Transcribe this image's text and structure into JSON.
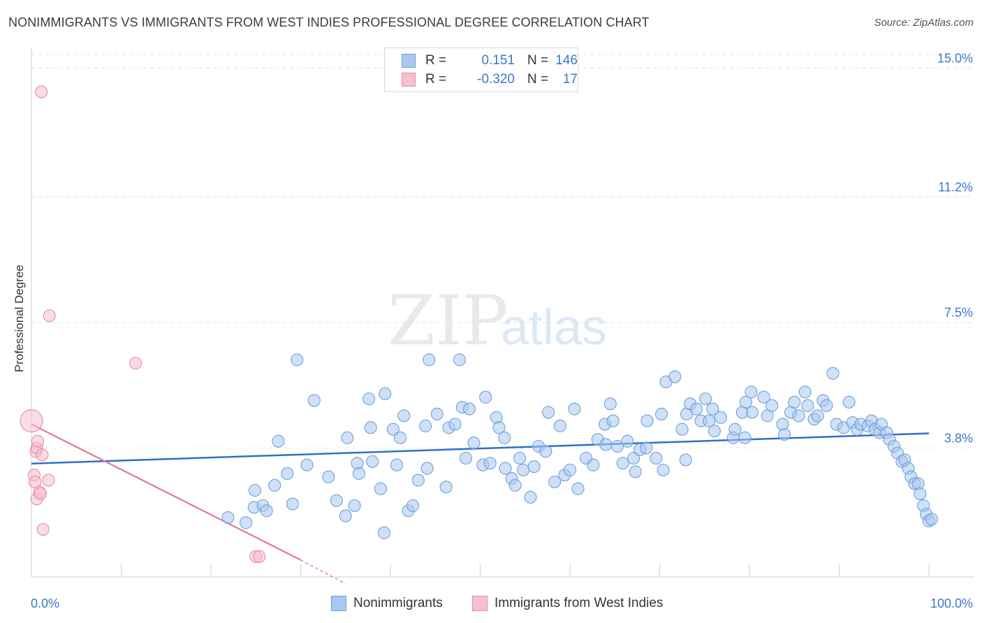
{
  "title": "NONIMMIGRANTS VS IMMIGRANTS FROM WEST INDIES PROFESSIONAL DEGREE CORRELATION CHART",
  "source": "Source: ZipAtlas.com",
  "watermark": {
    "zip": "ZIP",
    "atlas": "atlas"
  },
  "legend": {
    "rows": [
      {
        "r_label": "R =",
        "r_value": "0.151",
        "n_label": "N =",
        "n_value": "146",
        "color": "#a8c8f0",
        "border": "#6f9fd8"
      },
      {
        "r_label": "R =",
        "r_value": "-0.320",
        "n_label": "N =",
        "n_value": "17",
        "color": "#f7c0cf",
        "border": "#e58aa5"
      }
    ]
  },
  "bottom_legend": [
    {
      "label": "Nonimmigrants",
      "color": "#a8c8f0",
      "border": "#6f9fd8"
    },
    {
      "label": "Immigrants from West Indies",
      "color": "#f7c0cf",
      "border": "#e58aa5"
    }
  ],
  "chart_data": {
    "type": "scatter",
    "title": "NONIMMIGRANTS VS IMMIGRANTS FROM WEST INDIES PROFESSIONAL DEGREE CORRELATION CHART",
    "xlabel": "",
    "ylabel": "Professional Degree",
    "xlim": [
      0,
      100
    ],
    "ylim": [
      0,
      15.4
    ],
    "x_tick_labels": [
      "0.0%",
      "100.0%"
    ],
    "y_ticks": [
      3.8,
      7.5,
      11.2,
      15.0
    ],
    "y_tick_labels": [
      "3.8%",
      "7.5%",
      "11.2%",
      "15.0%"
    ],
    "grid": true,
    "legend_position": "top-center",
    "series": [
      {
        "name": "Nonimmigrants",
        "color": "#a8c8f0",
        "edge": "#6f9fd8",
        "trend": {
          "x": [
            0,
            100
          ],
          "y": [
            3.34,
            4.23
          ],
          "color": "#2f6fcc"
        },
        "points": [
          [
            21.9,
            1.75
          ],
          [
            23.9,
            1.6
          ],
          [
            24.8,
            2.05
          ],
          [
            24.9,
            2.55
          ],
          [
            25.8,
            2.1
          ],
          [
            26.2,
            1.95
          ],
          [
            27.1,
            2.7
          ],
          [
            27.5,
            4.0
          ],
          [
            28.5,
            3.05
          ],
          [
            29.1,
            2.15
          ],
          [
            29.6,
            6.4
          ],
          [
            30.7,
            3.3
          ],
          [
            31.5,
            5.2
          ],
          [
            33.1,
            2.95
          ],
          [
            34.0,
            2.25
          ],
          [
            35.0,
            1.8
          ],
          [
            35.2,
            4.1
          ],
          [
            36.0,
            2.1
          ],
          [
            36.3,
            3.35
          ],
          [
            36.5,
            3.05
          ],
          [
            37.6,
            5.25
          ],
          [
            37.8,
            4.4
          ],
          [
            38.0,
            3.4
          ],
          [
            38.9,
            2.6
          ],
          [
            39.3,
            1.3
          ],
          [
            39.4,
            5.4
          ],
          [
            40.3,
            4.35
          ],
          [
            40.7,
            3.3
          ],
          [
            41.1,
            4.1
          ],
          [
            41.5,
            4.75
          ],
          [
            42.0,
            1.95
          ],
          [
            42.5,
            2.1
          ],
          [
            43.1,
            2.85
          ],
          [
            43.9,
            4.45
          ],
          [
            44.1,
            3.2
          ],
          [
            44.3,
            6.4
          ],
          [
            45.2,
            4.8
          ],
          [
            46.2,
            2.65
          ],
          [
            46.5,
            4.4
          ],
          [
            47.2,
            4.5
          ],
          [
            47.7,
            6.4
          ],
          [
            48.0,
            5.0
          ],
          [
            48.4,
            3.5
          ],
          [
            48.8,
            4.95
          ],
          [
            49.3,
            3.95
          ],
          [
            50.3,
            3.3
          ],
          [
            50.6,
            5.3
          ],
          [
            51.1,
            3.35
          ],
          [
            51.8,
            4.7
          ],
          [
            52.1,
            4.4
          ],
          [
            52.7,
            4.1
          ],
          [
            52.8,
            3.2
          ],
          [
            53.5,
            2.9
          ],
          [
            53.9,
            2.7
          ],
          [
            54.4,
            3.5
          ],
          [
            54.8,
            3.15
          ],
          [
            55.6,
            2.35
          ],
          [
            56.0,
            3.25
          ],
          [
            56.5,
            3.85
          ],
          [
            57.3,
            3.7
          ],
          [
            57.6,
            4.85
          ],
          [
            58.3,
            2.8
          ],
          [
            58.9,
            4.45
          ],
          [
            59.4,
            3.0
          ],
          [
            60.0,
            3.15
          ],
          [
            60.5,
            4.95
          ],
          [
            60.9,
            2.6
          ],
          [
            61.8,
            3.5
          ],
          [
            62.6,
            3.3
          ],
          [
            63.1,
            4.05
          ],
          [
            63.9,
            4.5
          ],
          [
            64.0,
            3.9
          ],
          [
            64.5,
            5.1
          ],
          [
            64.8,
            4.6
          ],
          [
            65.3,
            3.85
          ],
          [
            65.9,
            3.35
          ],
          [
            66.4,
            4.0
          ],
          [
            67.1,
            3.5
          ],
          [
            67.3,
            3.1
          ],
          [
            67.8,
            3.75
          ],
          [
            68.5,
            3.8
          ],
          [
            68.6,
            4.6
          ],
          [
            69.6,
            3.5
          ],
          [
            70.2,
            4.8
          ],
          [
            70.4,
            3.15
          ],
          [
            70.7,
            5.75
          ],
          [
            71.7,
            5.9
          ],
          [
            72.5,
            4.35
          ],
          [
            72.9,
            3.45
          ],
          [
            73.0,
            4.8
          ],
          [
            73.4,
            5.1
          ],
          [
            74.1,
            4.95
          ],
          [
            74.6,
            4.6
          ],
          [
            75.1,
            5.25
          ],
          [
            75.5,
            4.6
          ],
          [
            75.9,
            4.95
          ],
          [
            76.1,
            4.3
          ],
          [
            76.8,
            4.7
          ],
          [
            78.2,
            4.1
          ],
          [
            78.4,
            4.35
          ],
          [
            79.2,
            4.85
          ],
          [
            79.5,
            4.1
          ],
          [
            79.6,
            5.15
          ],
          [
            80.2,
            5.45
          ],
          [
            80.3,
            4.85
          ],
          [
            81.6,
            5.3
          ],
          [
            82.0,
            4.75
          ],
          [
            82.5,
            5.05
          ],
          [
            83.7,
            4.5
          ],
          [
            83.9,
            4.2
          ],
          [
            84.6,
            4.85
          ],
          [
            85.0,
            5.15
          ],
          [
            85.5,
            4.75
          ],
          [
            86.2,
            5.45
          ],
          [
            86.5,
            5.05
          ],
          [
            87.2,
            4.65
          ],
          [
            87.6,
            4.75
          ],
          [
            88.2,
            5.2
          ],
          [
            88.6,
            5.05
          ],
          [
            89.3,
            6.0
          ],
          [
            89.7,
            4.5
          ],
          [
            90.5,
            4.4
          ],
          [
            91.1,
            5.15
          ],
          [
            91.5,
            4.55
          ],
          [
            92.0,
            4.35
          ],
          [
            92.4,
            4.5
          ],
          [
            93.2,
            4.45
          ],
          [
            93.6,
            4.6
          ],
          [
            94.0,
            4.35
          ],
          [
            94.5,
            4.25
          ],
          [
            94.7,
            4.5
          ],
          [
            95.3,
            4.25
          ],
          [
            95.6,
            4.05
          ],
          [
            96.1,
            3.85
          ],
          [
            96.5,
            3.65
          ],
          [
            97.0,
            3.4
          ],
          [
            97.3,
            3.45
          ],
          [
            97.7,
            3.2
          ],
          [
            98.0,
            2.95
          ],
          [
            98.4,
            2.75
          ],
          [
            98.8,
            2.75
          ],
          [
            99.0,
            2.45
          ],
          [
            99.4,
            2.1
          ],
          [
            99.7,
            1.85
          ],
          [
            100.0,
            1.65
          ],
          [
            100.3,
            1.7
          ]
        ]
      },
      {
        "name": "Immigrants from West Indies",
        "color": "#f7c0cf",
        "edge": "#e58aa5",
        "trend": {
          "x": [
            0,
            30
          ],
          "y": [
            4.5,
            0.5
          ],
          "dashed_to": [
            35,
            -0.2
          ],
          "color": "#e8759a"
        },
        "points": [
          [
            0.0,
            4.6
          ],
          [
            0.5,
            3.7
          ],
          [
            0.6,
            3.8
          ],
          [
            0.7,
            4.0
          ],
          [
            0.3,
            3.0
          ],
          [
            0.4,
            2.8
          ],
          [
            0.6,
            2.3
          ],
          [
            0.9,
            2.5
          ],
          [
            1.0,
            2.45
          ],
          [
            1.2,
            3.6
          ],
          [
            1.3,
            1.4
          ],
          [
            1.9,
            2.85
          ],
          [
            1.1,
            14.3
          ],
          [
            2.0,
            7.7
          ],
          [
            11.6,
            6.3
          ],
          [
            25.0,
            0.6
          ],
          [
            25.4,
            0.6
          ]
        ]
      }
    ]
  }
}
